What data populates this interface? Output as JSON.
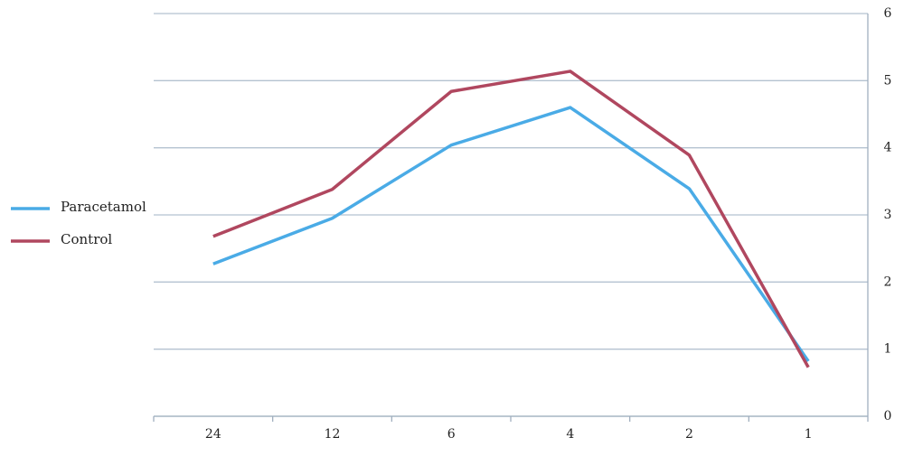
{
  "chart_data": {
    "type": "line",
    "categories": [
      "24",
      "12",
      "6",
      "4",
      "2",
      "1"
    ],
    "series": [
      {
        "name": "Paracetamol",
        "color": "#4aabe6",
        "values": [
          2.27,
          2.95,
          4.04,
          4.6,
          3.39,
          0.82
        ]
      },
      {
        "name": "Control",
        "color": "#b0475f",
        "values": [
          2.68,
          3.38,
          4.84,
          5.14,
          3.89,
          0.73
        ]
      }
    ],
    "ylim": [
      0,
      6
    ],
    "yticks": [
      0,
      1,
      2,
      3,
      4,
      5,
      6
    ],
    "grid": true,
    "y_axis_side": "right",
    "legend": "left"
  }
}
